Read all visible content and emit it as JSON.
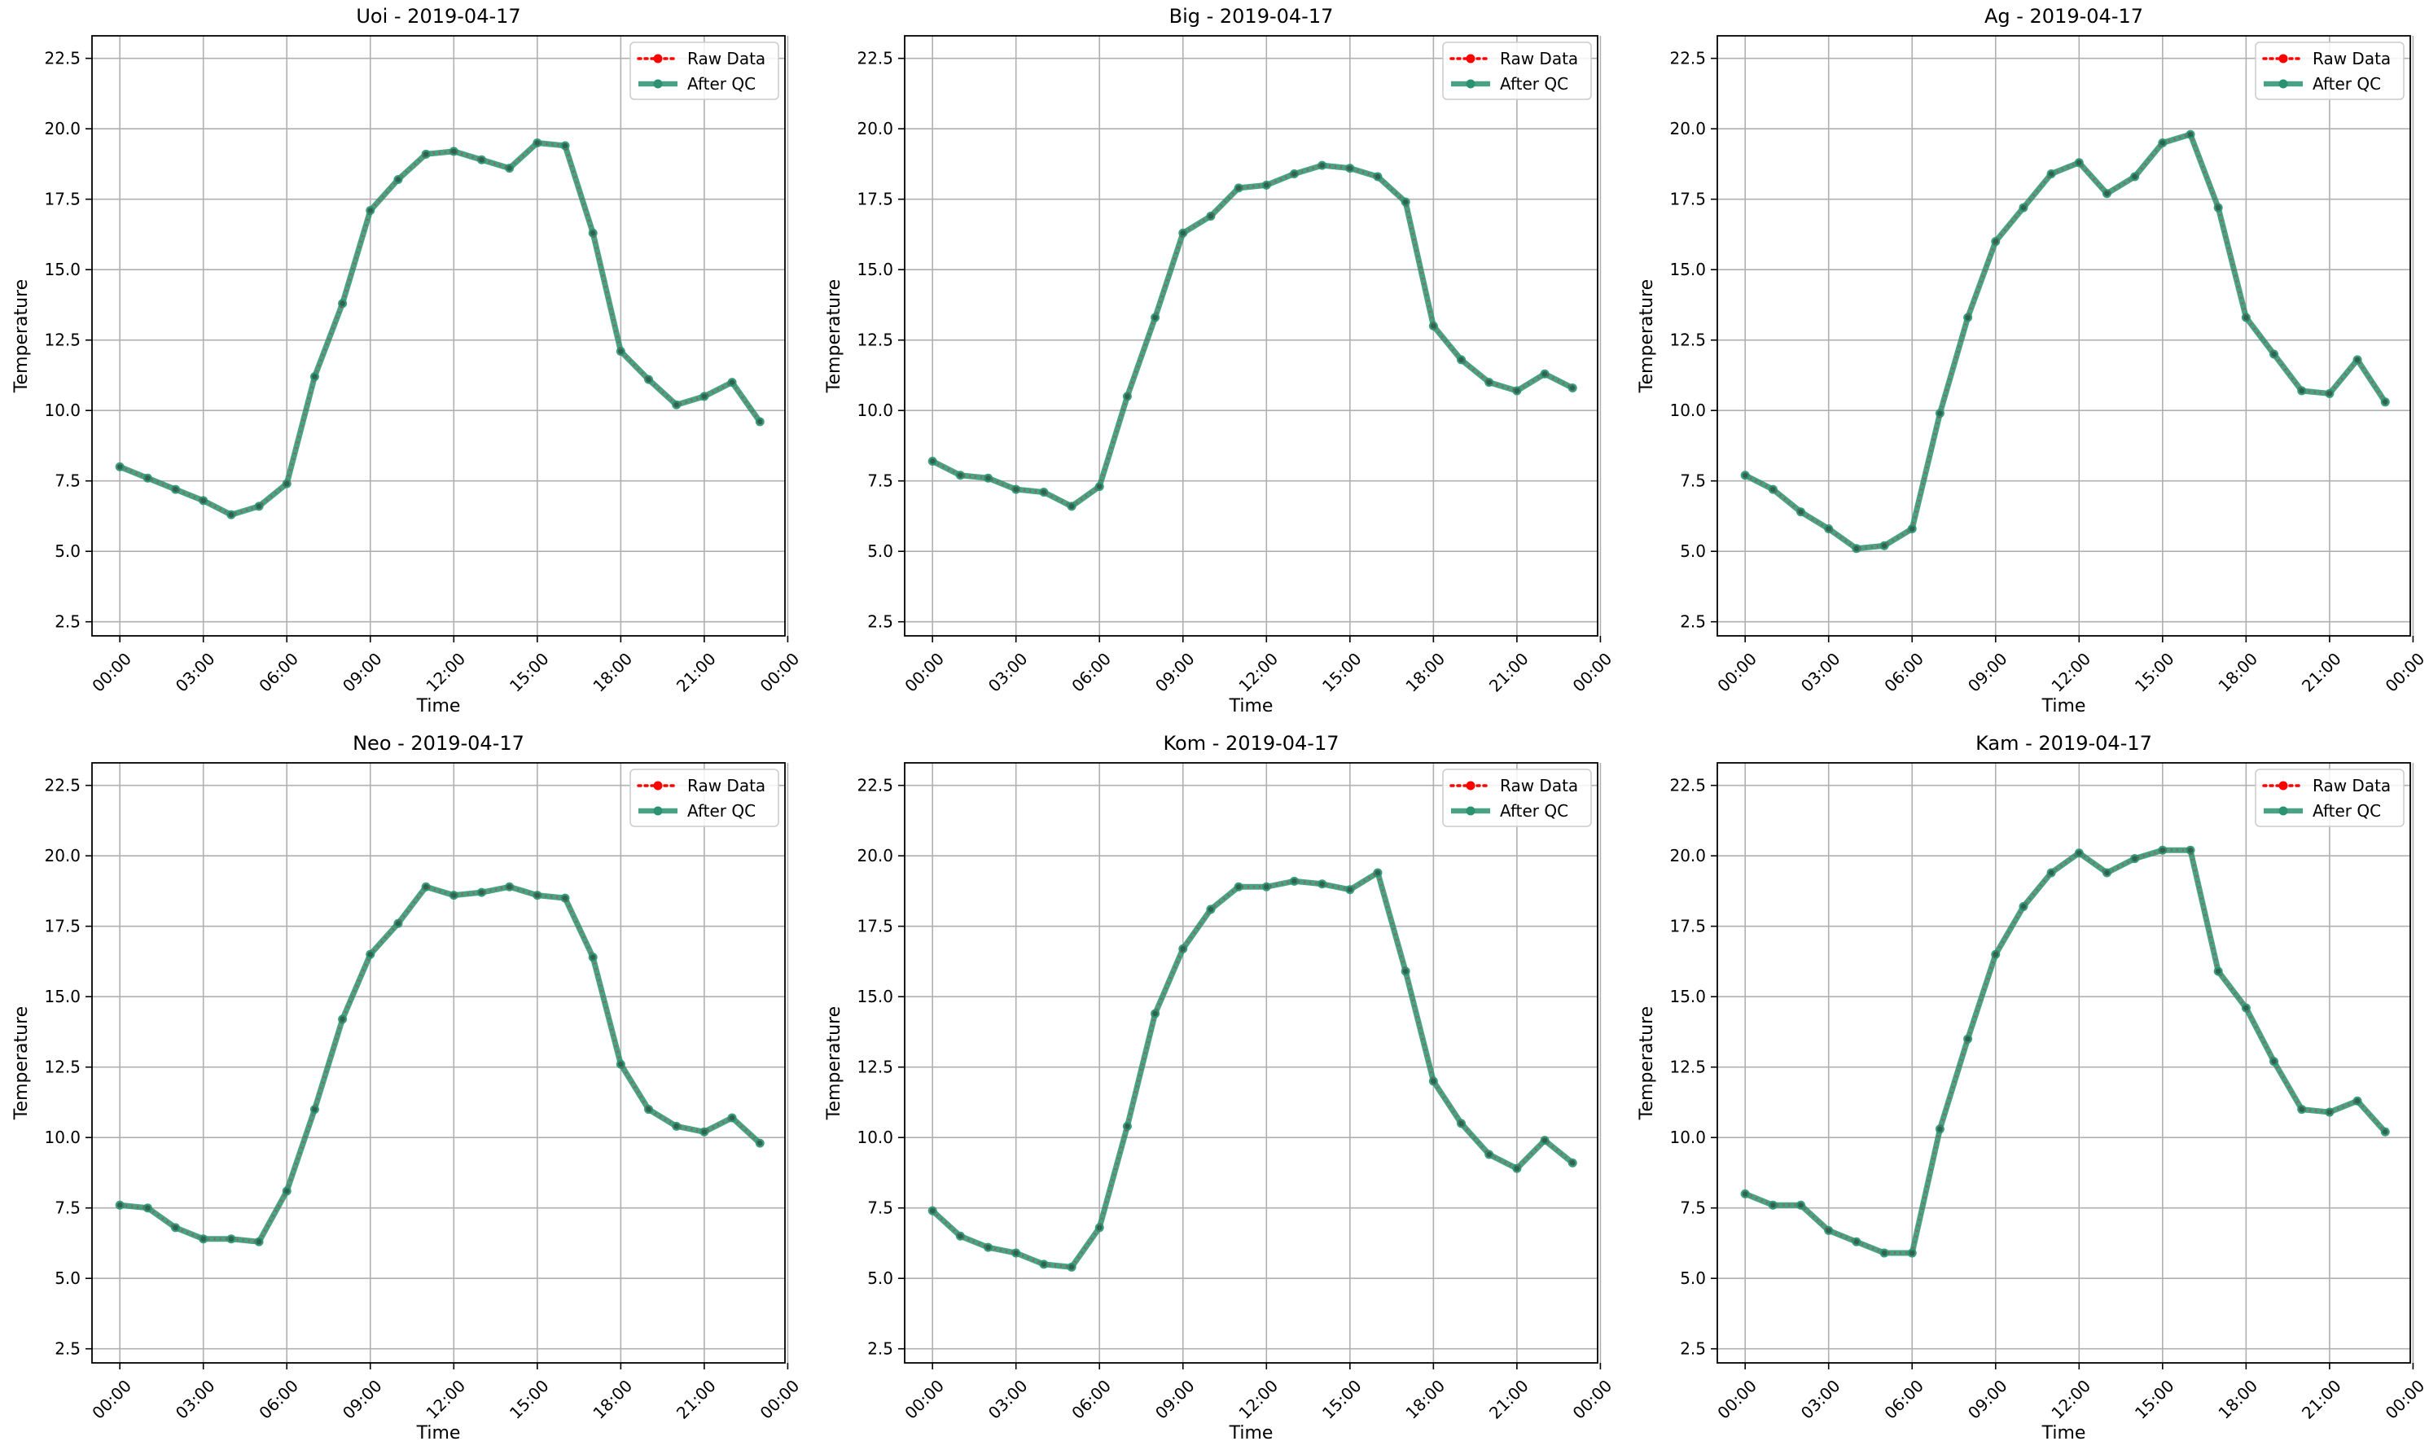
{
  "figure": {
    "raw_color": "#ff0000",
    "qc_color": "#2a9270",
    "grid_color": "#b0b0b0"
  },
  "chart_data": [
    {
      "type": "line",
      "title": "Uoi - 2019-04-17",
      "xlabel": "Time",
      "ylabel": "Temperature",
      "ylim": [
        2.0,
        23.3
      ],
      "yticks": [
        "2.5",
        "5.0",
        "7.5",
        "10.0",
        "12.5",
        "15.0",
        "17.5",
        "20.0",
        "22.5"
      ],
      "xticks": [
        "00:00",
        "03:00",
        "06:00",
        "09:00",
        "12:00",
        "15:00",
        "18:00",
        "21:00",
        "00:00"
      ],
      "legend": [
        "Raw Data",
        "After QC"
      ],
      "legend_position": "top-right",
      "grid": true,
      "x_hours": [
        0,
        1,
        2,
        3,
        4,
        5,
        6,
        7,
        8,
        9,
        10,
        11,
        12,
        13,
        14,
        15,
        16,
        17,
        18,
        19,
        20,
        21,
        22,
        23
      ],
      "series": [
        {
          "name": "Raw Data",
          "values": [
            8.0,
            7.6,
            7.2,
            6.8,
            6.3,
            6.6,
            7.4,
            11.2,
            13.8,
            17.1,
            18.2,
            19.1,
            19.2,
            18.9,
            18.6,
            19.5,
            19.4,
            16.3,
            12.1,
            11.1,
            10.2,
            10.5,
            11.0,
            9.6
          ]
        },
        {
          "name": "After QC",
          "values": [
            8.0,
            7.6,
            7.2,
            6.8,
            6.3,
            6.6,
            7.4,
            11.2,
            13.8,
            17.1,
            18.2,
            19.1,
            19.2,
            18.9,
            18.6,
            19.5,
            19.4,
            16.3,
            12.1,
            11.1,
            10.2,
            10.5,
            11.0,
            9.6
          ]
        }
      ]
    },
    {
      "type": "line",
      "title": "Big - 2019-04-17",
      "xlabel": "Time",
      "ylabel": "Temperature",
      "ylim": [
        2.0,
        23.3
      ],
      "yticks": [
        "2.5",
        "5.0",
        "7.5",
        "10.0",
        "12.5",
        "15.0",
        "17.5",
        "20.0",
        "22.5"
      ],
      "xticks": [
        "00:00",
        "03:00",
        "06:00",
        "09:00",
        "12:00",
        "15:00",
        "18:00",
        "21:00",
        "00:00"
      ],
      "legend": [
        "Raw Data",
        "After QC"
      ],
      "legend_position": "top-right",
      "grid": true,
      "x_hours": [
        0,
        1,
        2,
        3,
        4,
        5,
        6,
        7,
        8,
        9,
        10,
        11,
        12,
        13,
        14,
        15,
        16,
        17,
        18,
        19,
        20,
        21,
        22,
        23
      ],
      "series": [
        {
          "name": "Raw Data",
          "values": [
            8.2,
            7.7,
            7.6,
            7.2,
            7.1,
            6.6,
            7.3,
            10.5,
            13.3,
            16.3,
            16.9,
            17.9,
            18.0,
            18.4,
            18.7,
            18.6,
            18.3,
            17.4,
            13.0,
            11.8,
            11.0,
            10.7,
            11.3,
            10.8
          ]
        },
        {
          "name": "After QC",
          "values": [
            8.2,
            7.7,
            7.6,
            7.2,
            7.1,
            6.6,
            7.3,
            10.5,
            13.3,
            16.3,
            16.9,
            17.9,
            18.0,
            18.4,
            18.7,
            18.6,
            18.3,
            17.4,
            13.0,
            11.8,
            11.0,
            10.7,
            11.3,
            10.8
          ]
        }
      ]
    },
    {
      "type": "line",
      "title": "Ag - 2019-04-17",
      "xlabel": "Time",
      "ylabel": "Temperature",
      "ylim": [
        2.0,
        23.3
      ],
      "yticks": [
        "2.5",
        "5.0",
        "7.5",
        "10.0",
        "12.5",
        "15.0",
        "17.5",
        "20.0",
        "22.5"
      ],
      "xticks": [
        "00:00",
        "03:00",
        "06:00",
        "09:00",
        "12:00",
        "15:00",
        "18:00",
        "21:00",
        "00:00"
      ],
      "legend": [
        "Raw Data",
        "After QC"
      ],
      "legend_position": "top-right",
      "grid": true,
      "x_hours": [
        0,
        1,
        2,
        3,
        4,
        5,
        6,
        7,
        8,
        9,
        10,
        11,
        12,
        13,
        14,
        15,
        16,
        17,
        18,
        19,
        20,
        21,
        22,
        23
      ],
      "series": [
        {
          "name": "Raw Data",
          "values": [
            7.7,
            7.2,
            6.4,
            5.8,
            5.1,
            5.2,
            5.8,
            9.9,
            13.3,
            16.0,
            17.2,
            18.4,
            18.8,
            17.7,
            18.3,
            19.5,
            19.8,
            17.2,
            13.3,
            12.0,
            10.7,
            10.6,
            11.8,
            10.3
          ]
        },
        {
          "name": "After QC",
          "values": [
            7.7,
            7.2,
            6.4,
            5.8,
            5.1,
            5.2,
            5.8,
            9.9,
            13.3,
            16.0,
            17.2,
            18.4,
            18.8,
            17.7,
            18.3,
            19.5,
            19.8,
            17.2,
            13.3,
            12.0,
            10.7,
            10.6,
            11.8,
            10.3
          ]
        }
      ]
    },
    {
      "type": "line",
      "title": "Neo - 2019-04-17",
      "xlabel": "Time",
      "ylabel": "Temperature",
      "ylim": [
        2.0,
        23.3
      ],
      "yticks": [
        "2.5",
        "5.0",
        "7.5",
        "10.0",
        "12.5",
        "15.0",
        "17.5",
        "20.0",
        "22.5"
      ],
      "xticks": [
        "00:00",
        "03:00",
        "06:00",
        "09:00",
        "12:00",
        "15:00",
        "18:00",
        "21:00",
        "00:00"
      ],
      "legend": [
        "Raw Data",
        "After QC"
      ],
      "legend_position": "top-right",
      "grid": true,
      "x_hours": [
        0,
        1,
        2,
        3,
        4,
        5,
        6,
        7,
        8,
        9,
        10,
        11,
        12,
        13,
        14,
        15,
        16,
        17,
        18,
        19,
        20,
        21,
        22,
        23
      ],
      "series": [
        {
          "name": "Raw Data",
          "values": [
            7.6,
            7.5,
            6.8,
            6.4,
            6.4,
            6.3,
            8.1,
            11.0,
            14.2,
            16.5,
            17.6,
            18.9,
            18.6,
            18.7,
            18.9,
            18.6,
            18.5,
            16.4,
            12.6,
            11.0,
            10.4,
            10.2,
            10.7,
            9.8
          ]
        },
        {
          "name": "After QC",
          "values": [
            7.6,
            7.5,
            6.8,
            6.4,
            6.4,
            6.3,
            8.1,
            11.0,
            14.2,
            16.5,
            17.6,
            18.9,
            18.6,
            18.7,
            18.9,
            18.6,
            18.5,
            16.4,
            12.6,
            11.0,
            10.4,
            10.2,
            10.7,
            9.8
          ]
        }
      ]
    },
    {
      "type": "line",
      "title": "Kom - 2019-04-17",
      "xlabel": "Time",
      "ylabel": "Temperature",
      "ylim": [
        2.0,
        23.3
      ],
      "yticks": [
        "2.5",
        "5.0",
        "7.5",
        "10.0",
        "12.5",
        "15.0",
        "17.5",
        "20.0",
        "22.5"
      ],
      "xticks": [
        "00:00",
        "03:00",
        "06:00",
        "09:00",
        "12:00",
        "15:00",
        "18:00",
        "21:00",
        "00:00"
      ],
      "legend": [
        "Raw Data",
        "After QC"
      ],
      "legend_position": "top-right",
      "grid": true,
      "x_hours": [
        0,
        1,
        2,
        3,
        4,
        5,
        6,
        7,
        8,
        9,
        10,
        11,
        12,
        13,
        14,
        15,
        16,
        17,
        18,
        19,
        20,
        21,
        22,
        23
      ],
      "series": [
        {
          "name": "Raw Data",
          "values": [
            7.4,
            6.5,
            6.1,
            5.9,
            5.5,
            5.4,
            6.8,
            10.4,
            14.4,
            16.7,
            18.1,
            18.9,
            18.9,
            19.1,
            19.0,
            18.8,
            19.4,
            15.9,
            12.0,
            10.5,
            9.4,
            8.9,
            9.9,
            9.1
          ]
        },
        {
          "name": "After QC",
          "values": [
            7.4,
            6.5,
            6.1,
            5.9,
            5.5,
            5.4,
            6.8,
            10.4,
            14.4,
            16.7,
            18.1,
            18.9,
            18.9,
            19.1,
            19.0,
            18.8,
            19.4,
            15.9,
            12.0,
            10.5,
            9.4,
            8.9,
            9.9,
            9.1
          ]
        }
      ]
    },
    {
      "type": "line",
      "title": "Kam - 2019-04-17",
      "xlabel": "Time",
      "ylabel": "Temperature",
      "ylim": [
        2.0,
        23.3
      ],
      "yticks": [
        "2.5",
        "5.0",
        "7.5",
        "10.0",
        "12.5",
        "15.0",
        "17.5",
        "20.0",
        "22.5"
      ],
      "xticks": [
        "00:00",
        "03:00",
        "06:00",
        "09:00",
        "12:00",
        "15:00",
        "18:00",
        "21:00",
        "00:00"
      ],
      "legend": [
        "Raw Data",
        "After QC"
      ],
      "legend_position": "top-right",
      "grid": true,
      "x_hours": [
        0,
        1,
        2,
        3,
        4,
        5,
        6,
        7,
        8,
        9,
        10,
        11,
        12,
        13,
        14,
        15,
        16,
        17,
        18,
        19,
        20,
        21,
        22,
        23
      ],
      "series": [
        {
          "name": "Raw Data",
          "values": [
            8.0,
            7.6,
            7.6,
            6.7,
            6.3,
            5.9,
            5.9,
            10.3,
            13.5,
            16.5,
            18.2,
            19.4,
            20.1,
            19.4,
            19.9,
            20.2,
            20.2,
            15.9,
            14.6,
            12.7,
            11.0,
            10.9,
            11.3,
            10.2
          ]
        },
        {
          "name": "After QC",
          "values": [
            8.0,
            7.6,
            7.6,
            6.7,
            6.3,
            5.9,
            5.9,
            10.3,
            13.5,
            16.5,
            18.2,
            19.4,
            20.1,
            19.4,
            19.9,
            20.2,
            20.2,
            15.9,
            14.6,
            12.7,
            11.0,
            10.9,
            11.3,
            10.2
          ]
        }
      ]
    }
  ]
}
